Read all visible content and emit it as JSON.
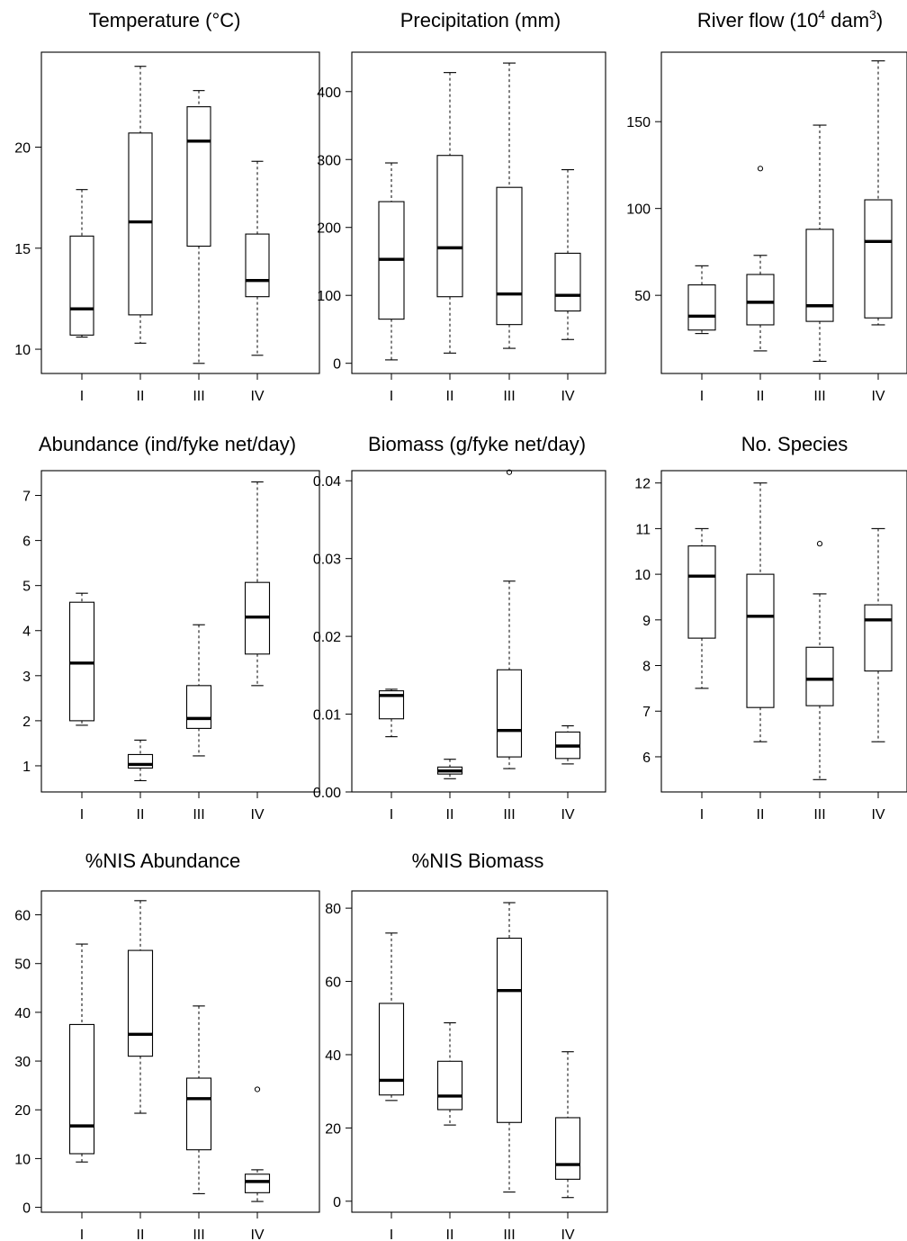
{
  "chart_data": [
    {
      "type": "box",
      "title": "Temperature (°C)",
      "categories": [
        "I",
        "II",
        "III",
        "IV"
      ],
      "ylim": [
        8.8,
        24.7
      ],
      "yticks": [
        10,
        15,
        20
      ],
      "boxes": [
        {
          "whisker_low": 10.6,
          "q1": 10.7,
          "median": 12.0,
          "q3": 15.6,
          "whisker_high": 17.9,
          "outliers": []
        },
        {
          "whisker_low": 10.3,
          "q1": 11.7,
          "median": 16.3,
          "q3": 20.7,
          "whisker_high": 24.0,
          "outliers": []
        },
        {
          "whisker_low": 9.3,
          "q1": 15.1,
          "median": 20.3,
          "q3": 22.0,
          "whisker_high": 22.8,
          "outliers": []
        },
        {
          "whisker_low": 9.7,
          "q1": 12.6,
          "median": 13.4,
          "q3": 15.7,
          "whisker_high": 19.3,
          "outliers": []
        }
      ]
    },
    {
      "type": "box",
      "title": "Precipitation (mm)",
      "categories": [
        "I",
        "II",
        "III",
        "IV"
      ],
      "ylim": [
        -15,
        458
      ],
      "yticks": [
        0,
        100,
        200,
        300,
        400
      ],
      "boxes": [
        {
          "whisker_low": 5,
          "q1": 65,
          "median": 153,
          "q3": 238,
          "whisker_high": 295,
          "outliers": []
        },
        {
          "whisker_low": 15,
          "q1": 98,
          "median": 170,
          "q3": 306,
          "whisker_high": 428,
          "outliers": []
        },
        {
          "whisker_low": 22,
          "q1": 57,
          "median": 102,
          "q3": 259,
          "whisker_high": 442,
          "outliers": []
        },
        {
          "whisker_low": 35,
          "q1": 77,
          "median": 100,
          "q3": 162,
          "whisker_high": 285,
          "outliers": []
        }
      ]
    },
    {
      "type": "box",
      "title": "River flow (10",
      "title_superscript": "4",
      "title_mid": " dam",
      "title_superscript2": "3",
      "title_end": ")",
      "categories": [
        "I",
        "II",
        "III",
        "IV"
      ],
      "ylim": [
        5,
        190
      ],
      "yticks": [
        50,
        100,
        150
      ],
      "boxes": [
        {
          "whisker_low": 28,
          "q1": 30,
          "median": 38,
          "q3": 56,
          "whisker_high": 67,
          "outliers": []
        },
        {
          "whisker_low": 18,
          "q1": 33,
          "median": 46,
          "q3": 62,
          "whisker_high": 73,
          "outliers": [
            123
          ]
        },
        {
          "whisker_low": 12,
          "q1": 35,
          "median": 44,
          "q3": 88,
          "whisker_high": 148,
          "outliers": []
        },
        {
          "whisker_low": 33,
          "q1": 37,
          "median": 81,
          "q3": 105,
          "whisker_high": 185,
          "outliers": []
        }
      ]
    },
    {
      "type": "box",
      "title": "Abundance (ind/fyke net/day)",
      "categories": [
        "I",
        "II",
        "III",
        "IV"
      ],
      "ylim": [
        0.42,
        7.55
      ],
      "yticks": [
        1,
        2,
        3,
        4,
        5,
        6,
        7
      ],
      "boxes": [
        {
          "whisker_low": 1.9,
          "q1": 2.0,
          "median": 3.28,
          "q3": 4.63,
          "whisker_high": 4.83,
          "outliers": []
        },
        {
          "whisker_low": 0.67,
          "q1": 0.95,
          "median": 1.03,
          "q3": 1.25,
          "whisker_high": 1.57,
          "outliers": []
        },
        {
          "whisker_low": 1.22,
          "q1": 1.83,
          "median": 2.05,
          "q3": 2.78,
          "whisker_high": 4.13,
          "outliers": []
        },
        {
          "whisker_low": 2.78,
          "q1": 3.48,
          "median": 4.3,
          "q3": 5.07,
          "whisker_high": 7.3,
          "outliers": []
        }
      ]
    },
    {
      "type": "box",
      "title": "Biomass (g/fyke net/day)",
      "categories": [
        "I",
        "II",
        "III",
        "IV"
      ],
      "ylim": [
        0,
        0.0413
      ],
      "yticks": [
        0.0,
        0.01,
        0.02,
        0.03,
        0.04
      ],
      "yticklabels": [
        "0.00",
        "0.01",
        "0.02",
        "0.03",
        "0.04"
      ],
      "boxes": [
        {
          "whisker_low": 0.0071,
          "q1": 0.0094,
          "median": 0.0124,
          "q3": 0.013,
          "whisker_high": 0.0132,
          "outliers": []
        },
        {
          "whisker_low": 0.0017,
          "q1": 0.0023,
          "median": 0.0027,
          "q3": 0.0032,
          "whisker_high": 0.0042,
          "outliers": []
        },
        {
          "whisker_low": 0.003,
          "q1": 0.0045,
          "median": 0.0079,
          "q3": 0.0157,
          "whisker_high": 0.0271,
          "outliers": [
            0.0411
          ]
        },
        {
          "whisker_low": 0.0036,
          "q1": 0.0043,
          "median": 0.0059,
          "q3": 0.0077,
          "whisker_high": 0.0085,
          "outliers": []
        }
      ]
    },
    {
      "type": "box",
      "title": "No. Species",
      "categories": [
        "I",
        "II",
        "III",
        "IV"
      ],
      "ylim": [
        5.23,
        12.27
      ],
      "yticks": [
        6,
        7,
        8,
        9,
        10,
        11,
        12
      ],
      "boxes": [
        {
          "whisker_low": 7.5,
          "q1": 8.6,
          "median": 9.96,
          "q3": 10.62,
          "whisker_high": 11.0,
          "outliers": []
        },
        {
          "whisker_low": 6.33,
          "q1": 7.08,
          "median": 9.08,
          "q3": 10.0,
          "whisker_high": 12.0,
          "outliers": []
        },
        {
          "whisker_low": 5.5,
          "q1": 7.12,
          "median": 7.7,
          "q3": 8.4,
          "whisker_high": 9.57,
          "outliers": [
            10.67
          ]
        },
        {
          "whisker_low": 6.33,
          "q1": 7.88,
          "median": 9.0,
          "q3": 9.33,
          "whisker_high": 11.0,
          "outliers": []
        }
      ]
    },
    {
      "type": "box",
      "title": "%NIS Abundance",
      "categories": [
        "I",
        "II",
        "III",
        "IV"
      ],
      "ylim": [
        -1,
        64.9
      ],
      "yticks": [
        0,
        10,
        20,
        30,
        40,
        50,
        60
      ],
      "boxes": [
        {
          "whisker_low": 9.3,
          "q1": 11.0,
          "median": 16.7,
          "q3": 37.5,
          "whisker_high": 54.0,
          "outliers": []
        },
        {
          "whisker_low": 19.3,
          "q1": 31.0,
          "median": 35.5,
          "q3": 52.7,
          "whisker_high": 62.9,
          "outliers": []
        },
        {
          "whisker_low": 2.8,
          "q1": 11.8,
          "median": 22.3,
          "q3": 26.5,
          "whisker_high": 41.3,
          "outliers": []
        },
        {
          "whisker_low": 1.2,
          "q1": 3.0,
          "median": 5.3,
          "q3": 6.8,
          "whisker_high": 7.7,
          "outliers": [
            24.2
          ]
        }
      ]
    },
    {
      "type": "box",
      "title": "%NIS Biomass",
      "categories": [
        "I",
        "II",
        "III",
        "IV"
      ],
      "ylim": [
        -3,
        84.7
      ],
      "yticks": [
        0,
        20,
        40,
        60,
        80
      ],
      "boxes": [
        {
          "whisker_low": 27.5,
          "q1": 29.0,
          "median": 33.0,
          "q3": 54.0,
          "whisker_high": 73.2,
          "outliers": []
        },
        {
          "whisker_low": 20.8,
          "q1": 25.0,
          "median": 28.7,
          "q3": 38.2,
          "whisker_high": 48.7,
          "outliers": []
        },
        {
          "whisker_low": 2.5,
          "q1": 21.5,
          "median": 57.5,
          "q3": 71.8,
          "whisker_high": 81.5,
          "outliers": []
        },
        {
          "whisker_low": 1.0,
          "q1": 6.0,
          "median": 10.0,
          "q3": 22.8,
          "whisker_high": 40.8,
          "outliers": []
        }
      ]
    }
  ]
}
